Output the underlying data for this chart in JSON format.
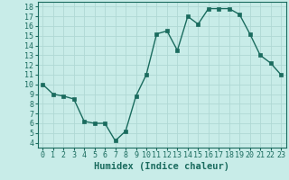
{
  "x": [
    0,
    1,
    2,
    3,
    4,
    5,
    6,
    7,
    8,
    9,
    10,
    11,
    12,
    13,
    14,
    15,
    16,
    17,
    18,
    19,
    20,
    21,
    22,
    23
  ],
  "y": [
    10.0,
    9.0,
    8.8,
    8.5,
    6.2,
    6.0,
    6.0,
    4.2,
    5.2,
    8.8,
    11.0,
    15.2,
    15.5,
    13.5,
    17.0,
    16.2,
    17.8,
    17.8,
    17.8,
    17.2,
    15.2,
    13.0,
    12.2,
    11.0
  ],
  "xlabel": "Humidex (Indice chaleur)",
  "ylim_min": 4,
  "ylim_max": 18,
  "xlim_min": 0,
  "xlim_max": 23,
  "yticks": [
    4,
    5,
    6,
    7,
    8,
    9,
    10,
    11,
    12,
    13,
    14,
    15,
    16,
    17,
    18
  ],
  "xticks": [
    0,
    1,
    2,
    3,
    4,
    5,
    6,
    7,
    8,
    9,
    10,
    11,
    12,
    13,
    14,
    15,
    16,
    17,
    18,
    19,
    20,
    21,
    22,
    23
  ],
  "line_color": "#1a6b5e",
  "bg_color": "#c8ece8",
  "grid_color": "#b0d8d4",
  "text_color": "#1a6b5e",
  "xlabel_fontsize": 7.5,
  "tick_fontsize": 6.0,
  "linewidth": 1.0,
  "markersize": 2.2
}
